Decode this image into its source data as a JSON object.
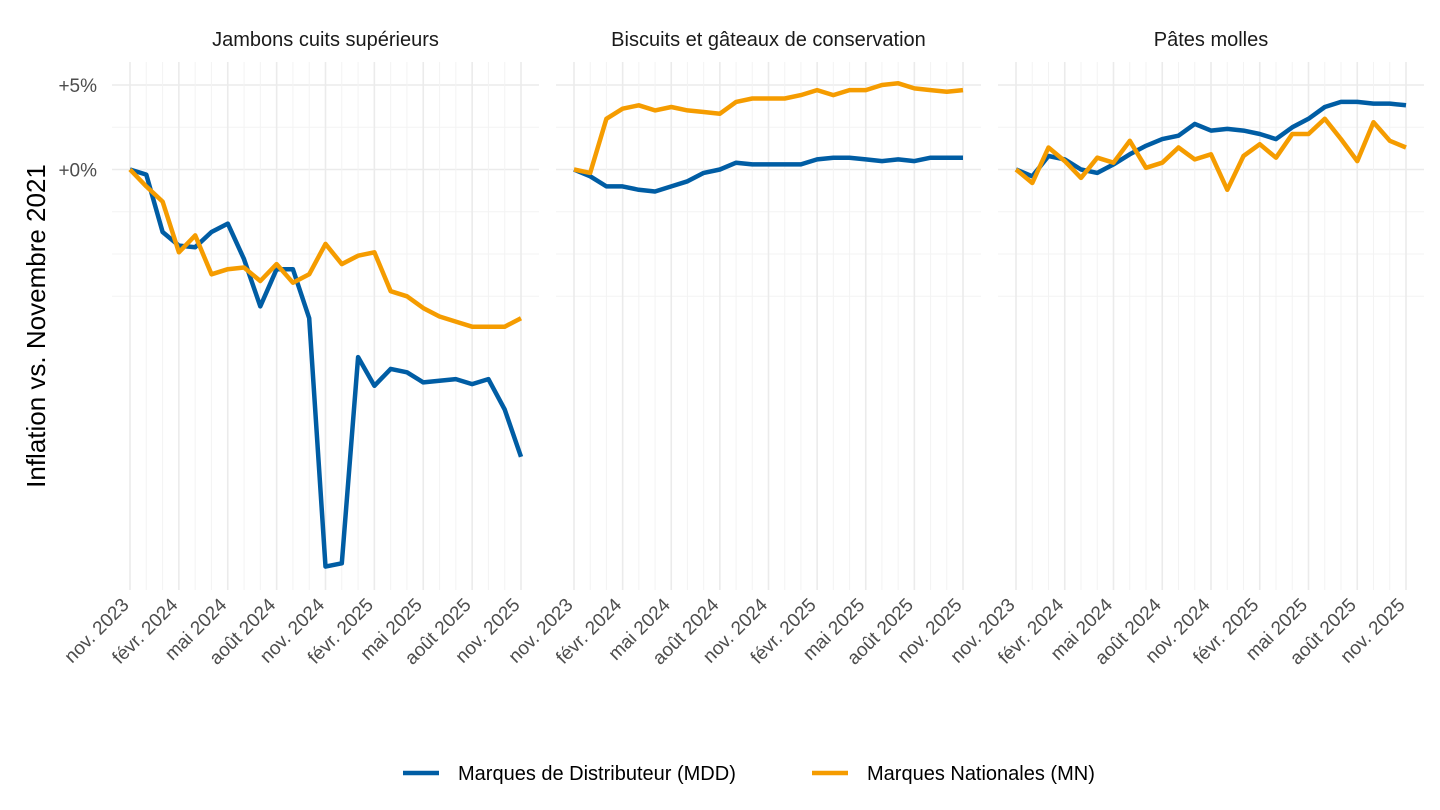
{
  "chart_data": {
    "type": "line",
    "ylabel": "Inflation vs. Novembre 2021",
    "ytick_labels": [
      {
        "value": 5,
        "label": "+5%"
      },
      {
        "value": 0,
        "label": "+0%"
      }
    ],
    "ylim": [
      -25,
      6.5
    ],
    "x_index_range": [
      0,
      24
    ],
    "x_tick_labels": [
      "nov. 2023",
      "févr. 2024",
      "mai 2024",
      "août 2024",
      "nov. 2024",
      "févr. 2025",
      "mai 2025",
      "août 2025",
      "nov. 2025"
    ],
    "x_tick_positions": [
      0,
      3,
      6,
      9,
      12,
      15,
      18,
      21,
      24
    ],
    "legend": {
      "position": "bottom",
      "entries": [
        {
          "name": "Marques de Distributeur (MDD)",
          "color": "#005DA4"
        },
        {
          "name": "Marques Nationales (MN)",
          "color": "#F59C00"
        }
      ]
    },
    "panels": [
      {
        "title": "Jambons cuits supérieurs",
        "series": [
          {
            "name": "Marques de Distributeur (MDD)",
            "color": "#005DA4",
            "values": [
              0,
              -0.3,
              -3.7,
              -4.5,
              -4.6,
              -3.7,
              -3.2,
              -5.3,
              -8.1,
              -5.9,
              -5.9,
              -8.8,
              -23.5,
              -23.3,
              -11.1,
              -12.8,
              -11.8,
              -12.0,
              -12.6,
              -12.5,
              -12.4,
              -12.7,
              -12.4,
              -14.2,
              -17.0
            ]
          },
          {
            "name": "Marques Nationales (MN)",
            "color": "#F59C00",
            "values": [
              0,
              -1.0,
              -1.9,
              -4.9,
              -3.9,
              -6.2,
              -5.9,
              -5.8,
              -6.6,
              -5.6,
              -6.7,
              -6.2,
              -4.4,
              -5.6,
              -5.1,
              -4.9,
              -7.2,
              -7.5,
              -8.2,
              -8.7,
              -9.0,
              -9.3,
              -9.3,
              -9.3,
              -8.8
            ]
          }
        ]
      },
      {
        "title": "Biscuits et gâteaux de conservation",
        "series": [
          {
            "name": "Marques de Distributeur (MDD)",
            "color": "#005DA4",
            "values": [
              0,
              -0.4,
              -1.0,
              -1.0,
              -1.2,
              -1.3,
              -1.0,
              -0.7,
              -0.2,
              0.0,
              0.4,
              0.3,
              0.3,
              0.3,
              0.3,
              0.6,
              0.7,
              0.7,
              0.6,
              0.5,
              0.6,
              0.5,
              0.7,
              0.7,
              0.7
            ]
          },
          {
            "name": "Marques Nationales (MN)",
            "color": "#F59C00",
            "values": [
              0,
              -0.2,
              3.0,
              3.6,
              3.8,
              3.5,
              3.7,
              3.5,
              3.4,
              3.3,
              4.0,
              4.2,
              4.2,
              4.2,
              4.4,
              4.7,
              4.4,
              4.7,
              4.7,
              5.0,
              5.1,
              4.8,
              4.7,
              4.6,
              4.7
            ]
          }
        ]
      },
      {
        "title": "Pâtes molles",
        "series": [
          {
            "name": "Marques de Distributeur (MDD)",
            "color": "#005DA4",
            "values": [
              0,
              -0.4,
              0.8,
              0.6,
              0.0,
              -0.2,
              0.3,
              0.9,
              1.4,
              1.8,
              2.0,
              2.7,
              2.3,
              2.4,
              2.3,
              2.1,
              1.8,
              2.5,
              3.0,
              3.7,
              4.0,
              4.0,
              3.9,
              3.9,
              3.8
            ]
          },
          {
            "name": "Marques Nationales (MN)",
            "color": "#F59C00",
            "values": [
              0,
              -0.8,
              1.3,
              0.5,
              -0.5,
              0.7,
              0.4,
              1.7,
              0.1,
              0.4,
              1.3,
              0.6,
              0.9,
              -1.2,
              0.8,
              1.5,
              0.7,
              2.1,
              2.1,
              3.0,
              1.8,
              0.5,
              2.8,
              1.7,
              1.3
            ]
          }
        ]
      }
    ]
  }
}
